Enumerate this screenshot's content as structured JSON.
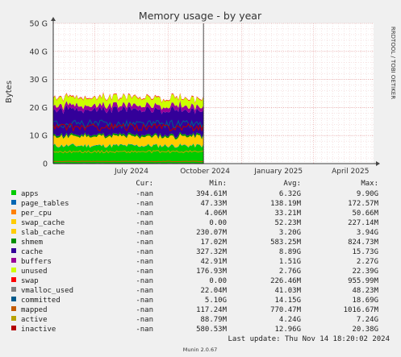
{
  "chart_data": {
    "type": "area",
    "title": "Memory usage - by year",
    "ylabel": "Bytes",
    "watermark": "RRDTOOL / TOBI OETIKER",
    "footer": "Munin 2.0.67",
    "last_update": "Last update: Thu Nov 14 18:20:02 2024",
    "y_ticks": [
      "0",
      "10 G",
      "20 G",
      "30 G",
      "40 G",
      "50 G"
    ],
    "y_tick_values": [
      0,
      10,
      20,
      30,
      40,
      50
    ],
    "ylim": [
      0,
      50
    ],
    "y_unit": "GB",
    "x_ticks": [
      "July 2024",
      "October 2024",
      "January 2025",
      "April 2025"
    ],
    "x_tick_values": [
      "2024-07-01",
      "2024-10-01",
      "2025-01-01",
      "2025-04-01"
    ],
    "xlim": [
      "2024-05-10",
      "2025-06-15"
    ],
    "data_end": "2024-11-14",
    "stacked": true,
    "grid": true,
    "legend_position": "bottom",
    "legend_headers": [
      "Cur:",
      "Min:",
      "Avg:",
      "Max:"
    ],
    "series": [
      {
        "name": "apps",
        "color": "#00cc00",
        "cur": "-nan",
        "min": "394.61M",
        "avg": "6.32G",
        "max": "9.90G",
        "avg_gb": 6.32
      },
      {
        "name": "page_tables",
        "color": "#0066b3",
        "cur": "-nan",
        "min": "47.33M",
        "avg": "138.19M",
        "max": "172.57M",
        "avg_gb": 0.138
      },
      {
        "name": "per_cpu",
        "color": "#ff8000",
        "cur": "-nan",
        "min": "4.06M",
        "avg": "33.21M",
        "max": "50.66M",
        "avg_gb": 0.033
      },
      {
        "name": "swap_cache",
        "color": "#ffcc00",
        "cur": "-nan",
        "min": "0.00",
        "avg": "52.23M",
        "max": "227.14M",
        "avg_gb": 0.052
      },
      {
        "name": "slab_cache",
        "color": "#ffcc00",
        "cur": "-nan",
        "min": "230.07M",
        "avg": "3.20G",
        "max": "3.94G",
        "avg_gb": 3.2
      },
      {
        "name": "shmem",
        "color": "#008f00",
        "cur": "-nan",
        "min": "17.02M",
        "avg": "583.25M",
        "max": "824.73M",
        "avg_gb": 0.583
      },
      {
        "name": "cache",
        "color": "#330099",
        "cur": "-nan",
        "min": "327.32M",
        "avg": "8.89G",
        "max": "15.73G",
        "avg_gb": 8.89
      },
      {
        "name": "buffers",
        "color": "#990099",
        "cur": "-nan",
        "min": "42.91M",
        "avg": "1.51G",
        "max": "2.27G",
        "avg_gb": 1.51
      },
      {
        "name": "unused",
        "color": "#ccff00",
        "cur": "-nan",
        "min": "176.93M",
        "avg": "2.76G",
        "max": "22.39G",
        "avg_gb": 2.76
      },
      {
        "name": "swap",
        "color": "#ff0000",
        "cur": "-nan",
        "min": "0.00",
        "avg": "226.46M",
        "max": "955.99M",
        "avg_gb": 0.226
      },
      {
        "name": "vmalloc_used",
        "color": "#808080",
        "cur": "-nan",
        "min": "22.04M",
        "avg": "41.03M",
        "max": "48.23M",
        "avg_gb": 0.041
      },
      {
        "name": "committed",
        "color": "#005a8c",
        "cur": "-nan",
        "min": "5.10G",
        "avg": "14.15G",
        "max": "18.69G",
        "avg_gb": 14.15
      },
      {
        "name": "mapped",
        "color": "#c35a00",
        "cur": "-nan",
        "min": "117.24M",
        "avg": "770.47M",
        "max": "1016.67M",
        "avg_gb": 0.77
      },
      {
        "name": "active",
        "color": "#b8a200",
        "cur": "-nan",
        "min": "88.79M",
        "avg": "4.24G",
        "max": "7.24G",
        "avg_gb": 4.24
      },
      {
        "name": "inactive",
        "color": "#b30000",
        "cur": "-nan",
        "min": "580.53M",
        "avg": "12.96G",
        "max": "20.38G",
        "avg_gb": 12.96
      }
    ]
  }
}
